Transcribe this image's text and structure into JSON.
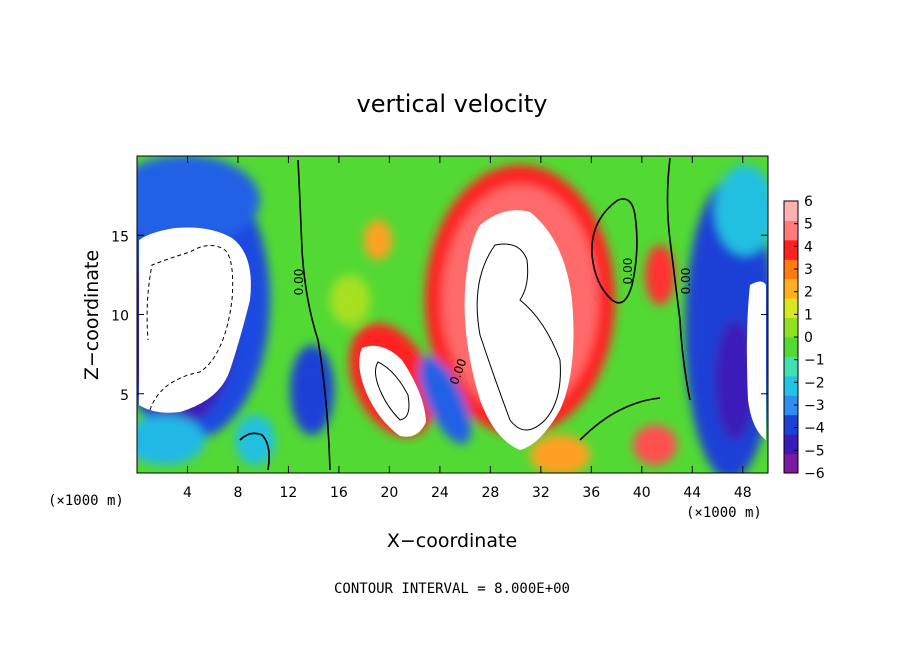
{
  "chart_data": {
    "type": "heatmap",
    "title": "vertical velocity",
    "xlabel": "X−coordinate",
    "ylabel": "Z−coordinate",
    "x_unit_label": "(×1000 m)",
    "z_unit_label": "(×1000 m)",
    "xlim": [
      0,
      50
    ],
    "ylim": [
      0,
      20
    ],
    "x_ticks": [
      4,
      8,
      12,
      16,
      20,
      24,
      28,
      32,
      36,
      40,
      44,
      48
    ],
    "y_ticks": [
      5,
      10,
      15
    ],
    "colorbar": {
      "min": -6,
      "max": 6,
      "tick_labels": [
        "6",
        "5",
        "4",
        "3",
        "2",
        "1",
        "0",
        "−1",
        "−2",
        "−3",
        "−4",
        "−5",
        "−6"
      ]
    },
    "contour_labels": [
      "0.00",
      "0.00",
      "0.00",
      "0.00"
    ],
    "contour_interval_text": "CONTOUR INTERVAL = 8.000E+00",
    "features": [
      {
        "name": "downdraft",
        "x": 4,
        "z": 11,
        "w": -12
      },
      {
        "name": "updraft",
        "x": 30,
        "z": 10,
        "w": 12
      },
      {
        "name": "updraft",
        "x": 20,
        "z": 5.5,
        "w": 10
      },
      {
        "name": "downdraft",
        "x": 14,
        "z": 5,
        "w": -5
      },
      {
        "name": "downdraft",
        "x": 46,
        "z": 8,
        "w": -6
      },
      {
        "name": "updraft",
        "x": 41.5,
        "z": 12,
        "w": 4
      },
      {
        "name": "updraft",
        "x": 24,
        "z": 12,
        "w": 2
      }
    ]
  }
}
